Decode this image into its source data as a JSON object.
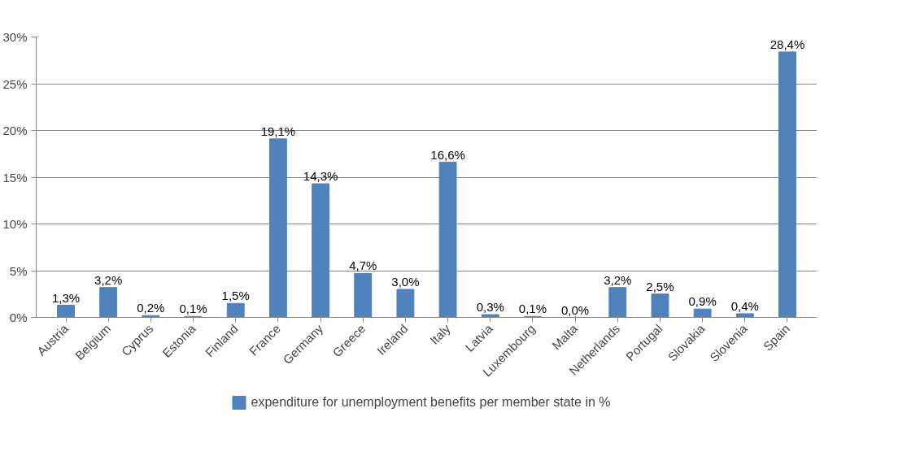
{
  "chart_data": {
    "type": "bar",
    "categories": [
      "Austria",
      "Belgium",
      "Cyprus",
      "Estonia",
      "Finland",
      "France",
      "Germany",
      "Greece",
      "Ireland",
      "Italy",
      "Latvia",
      "Luxembourg",
      "Malta",
      "Netherlands",
      "Portugal",
      "Slovakia",
      "Slovenia",
      "Spain"
    ],
    "series": [
      {
        "name": "expenditure for unemployment benefits per member state in %",
        "color": "#4f81bd",
        "values": [
          1.3,
          3.2,
          0.2,
          0.1,
          1.5,
          19.1,
          14.3,
          4.7,
          3.0,
          16.6,
          0.3,
          0.1,
          0.0,
          3.2,
          2.5,
          0.9,
          0.4,
          28.4
        ],
        "value_labels": [
          "1,3%",
          "3,2%",
          "0,2%",
          "0,1%",
          "1,5%",
          "19,1%",
          "14,3%",
          "4,7%",
          "3,0%",
          "16,6%",
          "0,3%",
          "0,1%",
          "0,0%",
          "3,2%",
          "2,5%",
          "0,9%",
          "0,4%",
          "28,4%"
        ]
      }
    ],
    "ylim": [
      0,
      30
    ],
    "yticks": [
      {
        "value": 0,
        "label": "0%"
      },
      {
        "value": 5,
        "label": "5%"
      },
      {
        "value": 10,
        "label": "10%"
      },
      {
        "value": 15,
        "label": "15%"
      },
      {
        "value": 20,
        "label": "20%"
      },
      {
        "value": 25,
        "label": "25%"
      },
      {
        "value": 30,
        "label": "30%"
      }
    ],
    "grid": "y",
    "legend": "bottom"
  }
}
